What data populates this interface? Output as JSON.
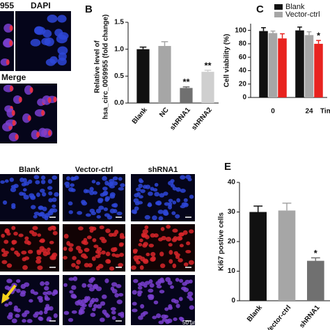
{
  "chart_data": [
    {
      "type": "bar",
      "panel": "B",
      "y_label": [
        "Relative level of",
        "hsa_circ_0059955 (fold change)"
      ],
      "categories": [
        "Blank",
        "NC",
        "shRNA1",
        "shRNA2"
      ],
      "values": [
        1.0,
        1.06,
        0.28,
        0.58
      ],
      "errors": [
        0.04,
        0.08,
        0.02,
        0.03
      ],
      "colors": [
        "#111111",
        "#a6a6a6",
        "#707070",
        "#cfcfcf"
      ],
      "ylim": [
        0,
        1.5
      ],
      "yticks": [
        {
          "value": 0,
          "label": "0.0"
        },
        {
          "value": 0.5,
          "label": "0.5"
        },
        {
          "value": 1.0,
          "label": "1.0"
        },
        {
          "value": 1.5,
          "label": "1.5"
        }
      ],
      "annotations": [
        {
          "label": "**",
          "category": "shRNA1"
        },
        {
          "label": "**",
          "category": "shRNA2"
        }
      ]
    },
    {
      "type": "bar",
      "panel": "C",
      "y_label": [
        "Cell viability (%)"
      ],
      "x_label": "Tim",
      "categories": [
        "0",
        "24"
      ],
      "series": [
        {
          "name": "Blank",
          "color": "#111111",
          "values": [
            99,
            100
          ],
          "errors": [
            5,
            5
          ]
        },
        {
          "name": "Vector-ctrl",
          "color": "#a6a6a6",
          "values": [
            96,
            93
          ],
          "errors": [
            3,
            5
          ]
        },
        {
          "color": "#e8231f",
          "values": [
            88,
            80
          ],
          "errors": [
            7,
            5
          ]
        }
      ],
      "ylim": [
        0,
        110
      ],
      "yticks": [
        0,
        20,
        40,
        60,
        80,
        100
      ],
      "annotations": [
        {
          "label": "*",
          "category": "24"
        }
      ]
    },
    {
      "type": "bar",
      "panel": "E",
      "y_label": [
        "Ki67 postive cells"
      ],
      "categories": [
        "Blank",
        "Vector-ctrl",
        "shRNA1"
      ],
      "values": [
        30,
        30.5,
        13.5
      ],
      "errors": [
        2,
        2.5,
        1
      ],
      "colors": [
        "#111111",
        "#a6a6a6",
        "#707070"
      ],
      "ylim": [
        0,
        40
      ],
      "yticks": [
        0,
        10,
        20,
        30,
        40
      ],
      "annotations": [
        {
          "label": "*",
          "category": "shRNA1"
        }
      ]
    }
  ],
  "images": {
    "panel_a": [
      "955",
      "DAPI",
      "Merge"
    ],
    "panel_d": [
      "Blank",
      "Vector-ctrl",
      "shRNA1"
    ],
    "scale_bar": "50 μm"
  }
}
